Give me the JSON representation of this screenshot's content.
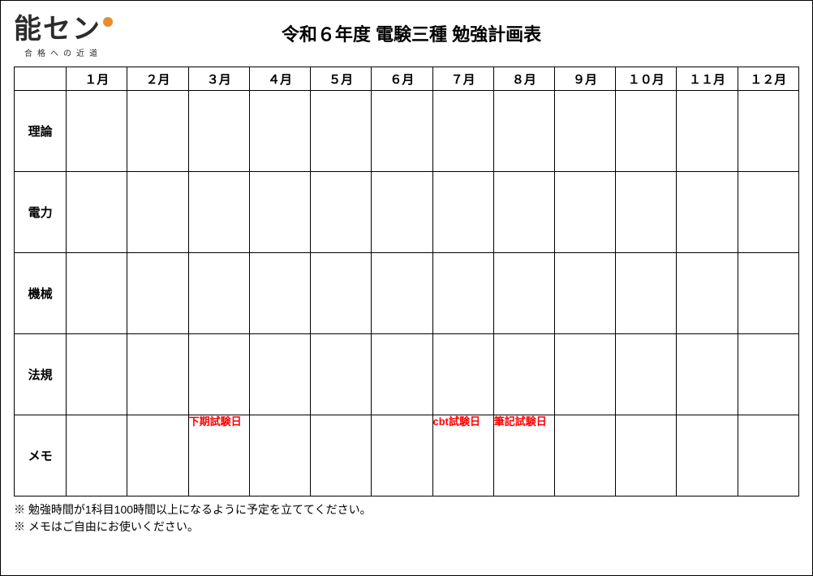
{
  "logo": {
    "main": "能セン",
    "dot_color": "#e88b2f",
    "sub": "合格への近道"
  },
  "title": "令和６年度 電験三種 勉強計画表",
  "months": [
    "１月",
    "２月",
    "３月",
    "４月",
    "５月",
    "６月",
    "７月",
    "８月",
    "９月",
    "１０月",
    "１１月",
    "１２月"
  ],
  "rows": [
    {
      "label": "理論",
      "cells": [
        "",
        "",
        "",
        "",
        "",
        "",
        "",
        "",
        "",
        "",
        "",
        ""
      ]
    },
    {
      "label": "電力",
      "cells": [
        "",
        "",
        "",
        "",
        "",
        "",
        "",
        "",
        "",
        "",
        "",
        ""
      ]
    },
    {
      "label": "機械",
      "cells": [
        "",
        "",
        "",
        "",
        "",
        "",
        "",
        "",
        "",
        "",
        "",
        ""
      ]
    },
    {
      "label": "法規",
      "cells": [
        "",
        "",
        "",
        "",
        "",
        "",
        "",
        "",
        "",
        "",
        "",
        ""
      ]
    },
    {
      "label": "メモ",
      "cells": [
        "",
        "",
        "下期試験日",
        "",
        "",
        "",
        "cbt試験日",
        "筆記試験日",
        "",
        "",
        "",
        ""
      ]
    }
  ],
  "highlight_color": "#ff0000",
  "notes": [
    "※ 勉強時間が1科目100時間以上になるように予定を立ててください。",
    "※ メモはご自由にお使いください。"
  ],
  "border_color": "#000000",
  "background_color": "#ffffff"
}
